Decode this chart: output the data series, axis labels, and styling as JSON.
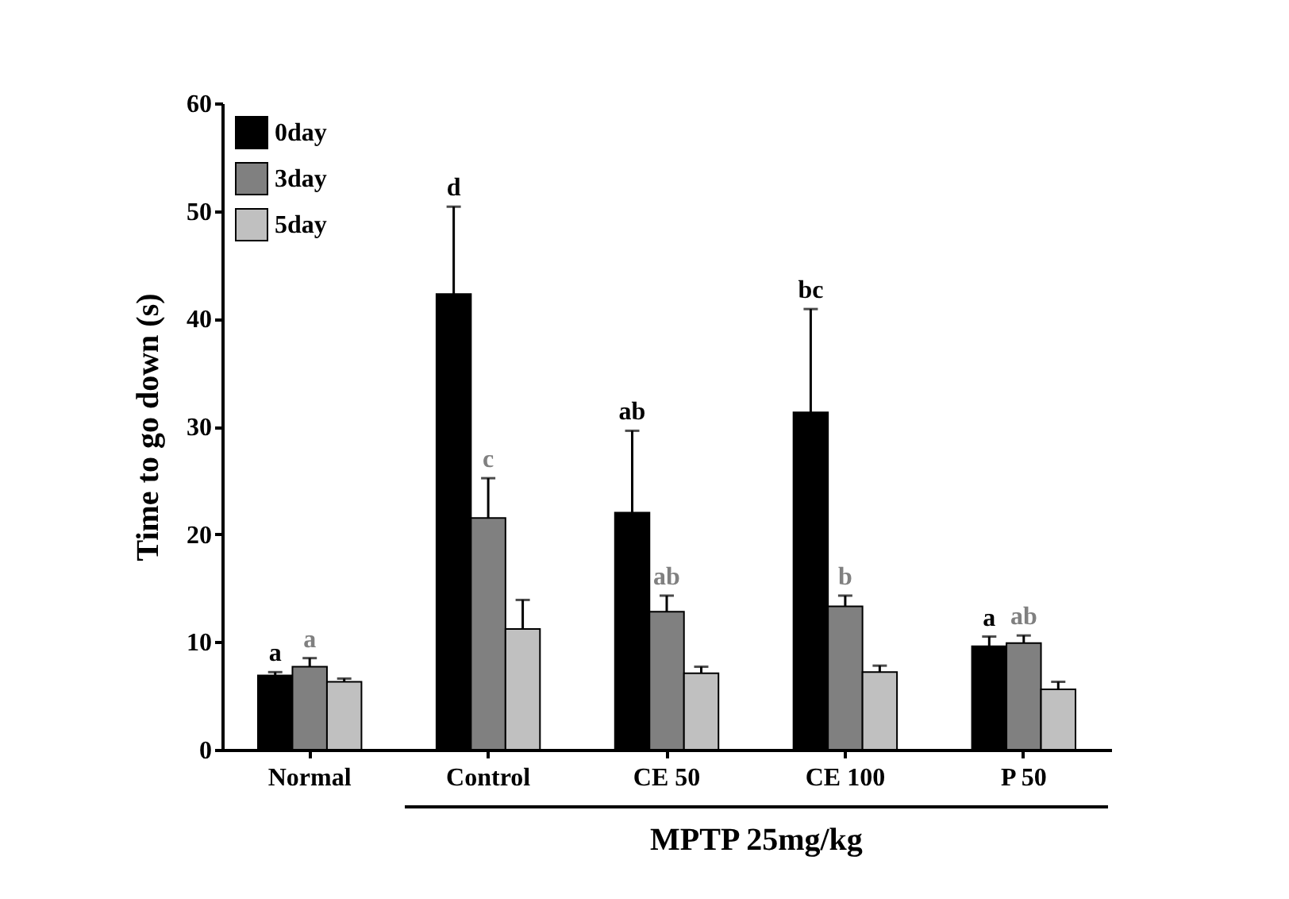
{
  "chart_data": {
    "type": "bar",
    "ylabel": "Time to go down (s)",
    "categories": [
      "Normal",
      "Control",
      "CE 50",
      "CE 100",
      "P 50"
    ],
    "series": [
      {
        "name": "0day",
        "color": "#000000",
        "values": [
          6.9,
          42.3,
          22.0,
          31.3,
          9.6
        ],
        "errors": [
          [
            6.9,
            7.2
          ],
          [
            42.3,
            50.4
          ],
          [
            22.0,
            29.6
          ],
          [
            31.3,
            40.9
          ],
          [
            9.6,
            10.5
          ]
        ]
      },
      {
        "name": "3day",
        "color": "#808080",
        "values": [
          7.7,
          21.5,
          12.8,
          13.3,
          9.9
        ],
        "errors": [
          [
            7.7,
            8.5
          ],
          [
            21.5,
            25.2
          ],
          [
            12.8,
            14.3
          ],
          [
            13.3,
            14.3
          ],
          [
            9.9,
            10.6
          ]
        ]
      },
      {
        "name": "5day",
        "color": "#c0c0c0",
        "values": [
          6.3,
          11.2,
          7.1,
          7.2,
          5.6
        ],
        "errors": [
          [
            6.3,
            6.6
          ],
          [
            11.2,
            13.9
          ],
          [
            7.1,
            7.7
          ],
          [
            7.2,
            7.8
          ],
          [
            5.6,
            6.3
          ]
        ]
      }
    ],
    "ylim": [
      0,
      60
    ],
    "yticks": [
      0,
      10,
      20,
      30,
      40,
      50,
      60
    ],
    "legend": "top left",
    "annotations": [
      "a",
      "a",
      "d",
      "c",
      "ab",
      "ab",
      "bc",
      "b",
      "a",
      "ab",
      "MPTP 25mg/kg"
    ]
  }
}
